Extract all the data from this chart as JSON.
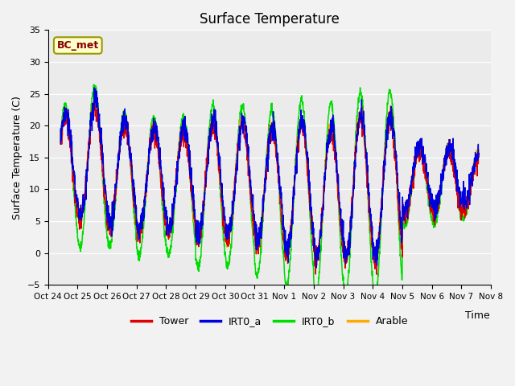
{
  "title": "Surface Temperature",
  "ylabel": "Surface Temperature (C)",
  "xlabel": "Time",
  "annotation": "BC_met",
  "ylim": [
    -5,
    35
  ],
  "yticks": [
    -5,
    0,
    5,
    10,
    15,
    20,
    25,
    30,
    35
  ],
  "tick_labels": [
    "Oct 24",
    "Oct 25",
    "Oct 26",
    "Oct 27",
    "Oct 28",
    "Oct 29",
    "Oct 30",
    "Oct 31",
    "Nov 1",
    "Nov 2",
    "Nov 3",
    "Nov 4",
    "Nov 5",
    "Nov 6",
    "Nov 7",
    "Nov 8"
  ],
  "legend_labels": [
    "Tower",
    "IRT0_a",
    "IRT0_b",
    "Arable"
  ],
  "colors": {
    "Tower": "#dd0000",
    "IRT0_a": "#0000dd",
    "IRT0_b": "#00dd00",
    "Arable": "#ffaa00"
  },
  "bg_color": "#e8e8e8",
  "plot_bg": "#ebebeb",
  "grid_color": "#ffffff",
  "n_days": 15,
  "figsize": [
    6.4,
    4.8
  ],
  "dpi": 100
}
